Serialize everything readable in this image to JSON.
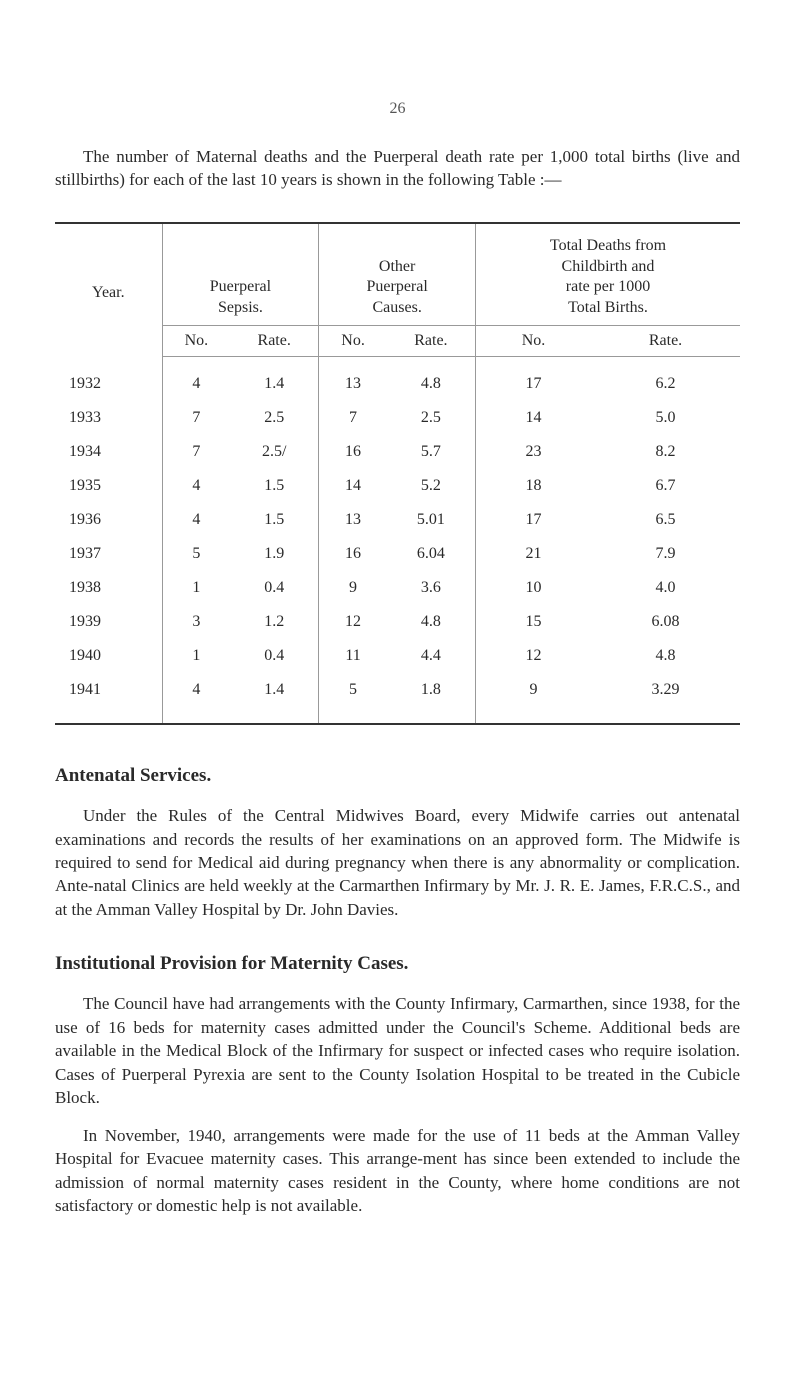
{
  "page_number": "26",
  "intro": "The number of Maternal deaths and the Puerperal death rate per 1,000 total births (live and stillbirths) for each of the last 10 years is shown in the following Table :—",
  "table": {
    "year_header": "Year.",
    "groups": [
      {
        "title": "Puerperal\nSepsis."
      },
      {
        "title": "Other\nPuerperal\nCauses."
      },
      {
        "title": "Total Deaths from\nChildbirth and\nrate per 1000\nTotal Births."
      }
    ],
    "sub_headers": [
      "No.",
      "Rate.",
      "No.",
      "Rate.",
      "No.",
      "Rate."
    ],
    "rows": [
      {
        "year": "1932",
        "c": [
          "4",
          "1.4",
          "13",
          "4.8",
          "17",
          "6.2"
        ]
      },
      {
        "year": "1933",
        "c": [
          "7",
          "2.5",
          "7",
          "2.5",
          "14",
          "5.0"
        ]
      },
      {
        "year": "1934",
        "c": [
          "7",
          "2.5/",
          "16",
          "5.7",
          "23",
          "8.2"
        ]
      },
      {
        "year": "1935",
        "c": [
          "4",
          "1.5",
          "14",
          "5.2",
          "18",
          "6.7"
        ]
      },
      {
        "year": "1936",
        "c": [
          "4",
          "1.5",
          "13",
          "5.01",
          "17",
          "6.5"
        ]
      },
      {
        "year": "1937",
        "c": [
          "5",
          "1.9",
          "16",
          "6.04",
          "21",
          "7.9"
        ]
      },
      {
        "year": "1938",
        "c": [
          "1",
          "0.4",
          "9",
          "3.6",
          "10",
          "4.0"
        ]
      },
      {
        "year": "1939",
        "c": [
          "3",
          "1.2",
          "12",
          "4.8",
          "15",
          "6.08"
        ]
      },
      {
        "year": "1940",
        "c": [
          "1",
          "0.4",
          "11",
          "4.4",
          "12",
          "4.8"
        ]
      },
      {
        "year": "1941",
        "c": [
          "4",
          "1.4",
          "5",
          "1.8",
          "9",
          "3.29"
        ]
      }
    ]
  },
  "sections": [
    {
      "heading": "Antenatal Services.",
      "paragraphs": [
        "Under the Rules of the Central Midwives Board, every Midwife carries out antenatal examinations and records the results of her examinations on an approved form. The Midwife is required to send for Medical aid during pregnancy when there is any abnormality or complication. Ante-natal Clinics are held weekly at the Carmarthen Infirmary by Mr. J. R. E. James, F.R.C.S., and at the Amman Valley Hospital by Dr. John Davies."
      ]
    },
    {
      "heading": "Institutional Provision for Maternity Cases.",
      "paragraphs": [
        "The Council have had arrangements with the County Infirmary, Carmarthen, since 1938, for the use of 16 beds for maternity cases admitted under the Council's Scheme. Additional beds are available in the Medical Block of the Infirmary for suspect or infected cases who require isolation. Cases of Puerperal Pyrexia are sent to the County Isolation Hospital to be treated in the Cubicle Block.",
        "In November, 1940, arrangements were made for the use of 11 beds at the Amman Valley Hospital for Evacuee maternity cases. This arrange-ment has since been extended to include the admission of normal maternity cases resident in the County, where home conditions are not satisfactory or domestic help is not available."
      ]
    }
  ]
}
